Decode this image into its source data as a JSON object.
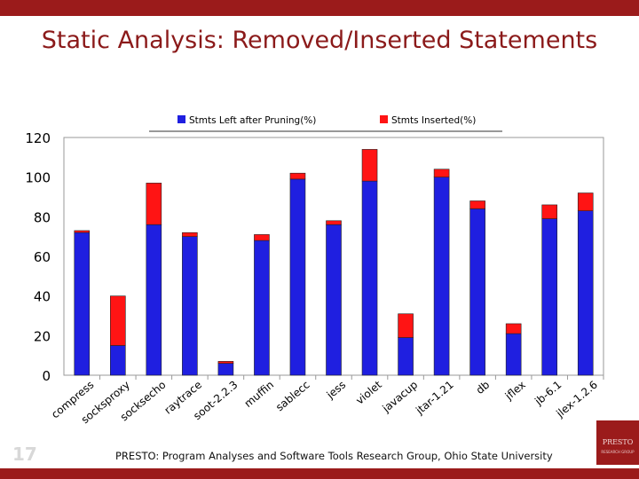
{
  "slide": {
    "title": "Static Analysis: Removed/Inserted Statements",
    "footer": "PRESTO: Program Analyses and Software Tools Research Group, Ohio State University",
    "slide_number": "17",
    "logo_text": "PRESTO",
    "logo_subtext": "RESEARCH GROUP"
  },
  "colors": {
    "accent": "#9b1b1b",
    "blue": "#1f1fe0",
    "red": "#ff1414"
  },
  "chart_data": {
    "type": "bar",
    "stacked": true,
    "categories": [
      "compress",
      "socksproxy",
      "socksecho",
      "raytrace",
      "soot-2.2.3",
      "muffin",
      "sablecc",
      "jess",
      "violet",
      "javacup",
      "jtar-1.21",
      "db",
      "jflex",
      "jb-6.1",
      "jlex-1.2.6"
    ],
    "series": [
      {
        "name": "Stmts Left after Pruning(%)",
        "color": "#1f1fe0",
        "values": [
          72,
          15,
          76,
          70,
          6,
          68,
          99,
          76,
          98,
          19,
          100,
          84,
          21,
          79,
          83
        ]
      },
      {
        "name": "Stmts Inserted(%)",
        "color": "#ff1414",
        "values": [
          1,
          25,
          21,
          2,
          1,
          3,
          3,
          2,
          16,
          12,
          4,
          4,
          5,
          7,
          9
        ]
      }
    ],
    "ylim": [
      0,
      120
    ],
    "yticks": [
      "0",
      "20",
      "40",
      "60",
      "80",
      "100",
      "120"
    ],
    "grid": false,
    "legend": "top"
  }
}
